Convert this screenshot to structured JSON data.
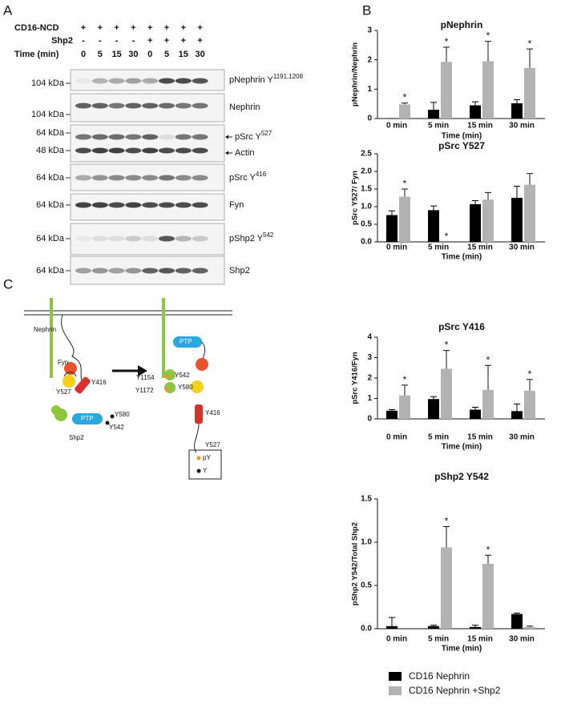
{
  "panels": [
    "A",
    "B",
    "C"
  ],
  "blot": {
    "header": [
      {
        "label": "CD16-NCD",
        "lanes": [
          "+",
          "+",
          "+",
          "+",
          "+",
          "+",
          "+",
          "+"
        ]
      },
      {
        "label": "Shp2",
        "lanes": [
          "-",
          "-",
          "-",
          "-",
          "+",
          "+",
          "+",
          "+"
        ]
      },
      {
        "label": "Time (min)",
        "lanes": [
          0,
          5,
          15,
          30,
          0,
          5,
          15,
          30
        ]
      }
    ],
    "kda": [
      "104 kDa",
      "104 kDa",
      "64 kDa",
      "48 kDa",
      "64 kDa",
      "64 kDa",
      "64 kDa",
      "64 kDa"
    ],
    "labels": [
      {
        "name": "pNephrin Y",
        "sup": "1191,1208"
      },
      {
        "name": "Nephrin"
      },
      {
        "name": "pSrc Y",
        "sup": "527"
      },
      {
        "name": "Actin"
      },
      {
        "name": "pSrc Y",
        "sup": "416"
      },
      {
        "name": "Fyn"
      },
      {
        "name": "pShp2 Y",
        "sup": "542"
      },
      {
        "name": "Shp2"
      }
    ]
  },
  "diagram": {
    "labels": [
      "Nephrin",
      "Fyn",
      "Y527",
      "Y416",
      "PTP",
      "Y580",
      "Y542",
      "Shp2",
      "Y1154",
      "Y1172",
      "PTP",
      "Y542",
      "Y580",
      "Y416",
      "Y527",
      "pY",
      "Y"
    ]
  },
  "legend": [
    {
      "name": "CD16 Nephrin",
      "color": "#000000"
    },
    {
      "name": "CD16 Nephrin +Shp2",
      "color": "#b3b3b3"
    }
  ],
  "chart_data": [
    {
      "type": "bar",
      "title": "pNephrin",
      "ylabel": "pNephrin/Nephrin",
      "xlabel": "Time (min)",
      "categories": [
        "0 min",
        "5 min",
        "15 min",
        "30 min"
      ],
      "ylim": [
        0,
        3
      ],
      "yticks": [
        0,
        1,
        2,
        3
      ],
      "series": [
        {
          "color": "#000000",
          "values": [
            0,
            0.3,
            0.45,
            0.52
          ],
          "errors": [
            0,
            0.25,
            0.12,
            0.12
          ]
        },
        {
          "color": "#b3b3b3",
          "values": [
            0.48,
            1.93,
            1.95,
            1.72
          ],
          "errors": [
            0.05,
            0.5,
            0.68,
            0.65
          ]
        }
      ],
      "annotations": [
        "*",
        "*",
        "*",
        "*"
      ]
    },
    {
      "type": "bar",
      "title": "pSrc Y527",
      "ylabel": "pSrc Y527/ Fyn",
      "xlabel": "Time (min)",
      "categories": [
        "0 min",
        "5 min",
        "15 min",
        "30 min"
      ],
      "ylim": [
        0,
        2.5
      ],
      "yticks": [
        {
          "value": 0,
          "label": "0.0"
        },
        0.5,
        {
          "value": 1,
          "label": "1.0"
        },
        1.5,
        {
          "value": 2,
          "label": "2.0"
        },
        2.5
      ],
      "series": [
        {
          "color": "#000000",
          "values": [
            0.76,
            0.9,
            1.07,
            1.25
          ],
          "errors": [
            0.12,
            0.12,
            0.1,
            0.33
          ]
        },
        {
          "color": "#b3b3b3",
          "values": [
            1.28,
            0,
            1.2,
            1.62
          ],
          "errors": [
            0.22,
            0,
            0.2,
            0.32
          ]
        }
      ],
      "annotations": [
        "*",
        "*",
        null,
        null
      ]
    },
    {
      "type": "bar",
      "title": "pSrc Y416",
      "ylabel": "pSrc Y416/Fyn",
      "xlabel": "Time (min)",
      "categories": [
        "0 min",
        "5 min",
        "15 min",
        "30 min"
      ],
      "ylim": [
        0,
        4
      ],
      "yticks": [
        0,
        1,
        2,
        3,
        4
      ],
      "series": [
        {
          "color": "#000000",
          "values": [
            0.4,
            0.97,
            0.45,
            0.38
          ],
          "errors": [
            0.05,
            0.12,
            0.12,
            0.35
          ]
        },
        {
          "color": "#b3b3b3",
          "values": [
            1.15,
            2.45,
            1.42,
            1.38
          ],
          "errors": [
            0.5,
            0.9,
            1.2,
            0.55
          ]
        }
      ],
      "annotations": [
        "*",
        "*",
        "*",
        "*"
      ]
    },
    {
      "type": "bar",
      "title": "pShp2 Y542",
      "ylabel": "pShp2 Y542/Total Shp2",
      "xlabel": "Time (min)",
      "categories": [
        "0 min",
        "5 min",
        "15 min",
        "30 min"
      ],
      "ylim": [
        0,
        1.5
      ],
      "yticks": [
        {
          "value": 0,
          "label": "0.0"
        },
        0.5,
        {
          "value": 1,
          "label": "1.0"
        },
        1.5
      ],
      "series": [
        {
          "color": "#000000",
          "values": [
            0.03,
            0.03,
            0.02,
            0.17
          ],
          "errors": [
            0.1,
            0.01,
            0.02,
            0.01
          ]
        },
        {
          "color": "#b3b3b3",
          "values": [
            0,
            0.94,
            0.75,
            0.02
          ],
          "errors": [
            0,
            0.24,
            0.1,
            0.01
          ]
        }
      ],
      "annotations": [
        null,
        "*",
        "*",
        null
      ]
    }
  ]
}
